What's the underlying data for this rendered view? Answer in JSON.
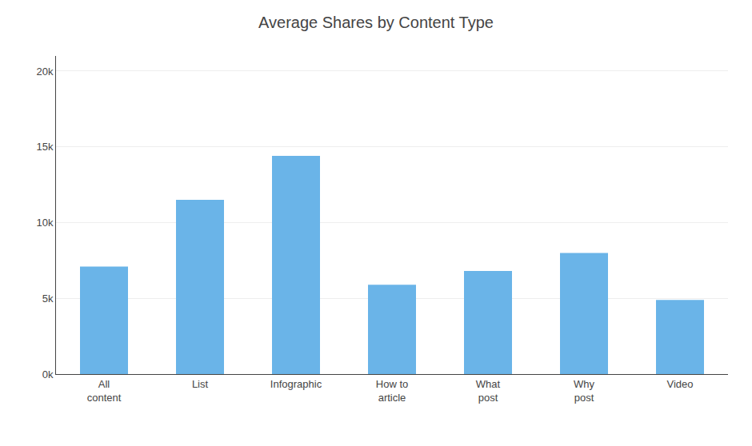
{
  "chart_data": {
    "type": "bar",
    "title": "Average Shares by Content Type",
    "categories": [
      "All\ncontent",
      "List",
      "Infographic",
      "How to\narticle",
      "What\npost",
      "Why\npost",
      "Video"
    ],
    "values": [
      7100,
      11500,
      14400,
      5900,
      6800,
      8000,
      4900
    ],
    "color": "#6ab4e8",
    "ylim": [
      0,
      21000
    ],
    "yticks": [
      {
        "value": 0,
        "label": "0k"
      },
      {
        "value": 5000,
        "label": "5k"
      },
      {
        "value": 10000,
        "label": "10k"
      },
      {
        "value": 15000,
        "label": "15k"
      },
      {
        "value": 20000,
        "label": "20k"
      }
    ],
    "grid": true
  }
}
